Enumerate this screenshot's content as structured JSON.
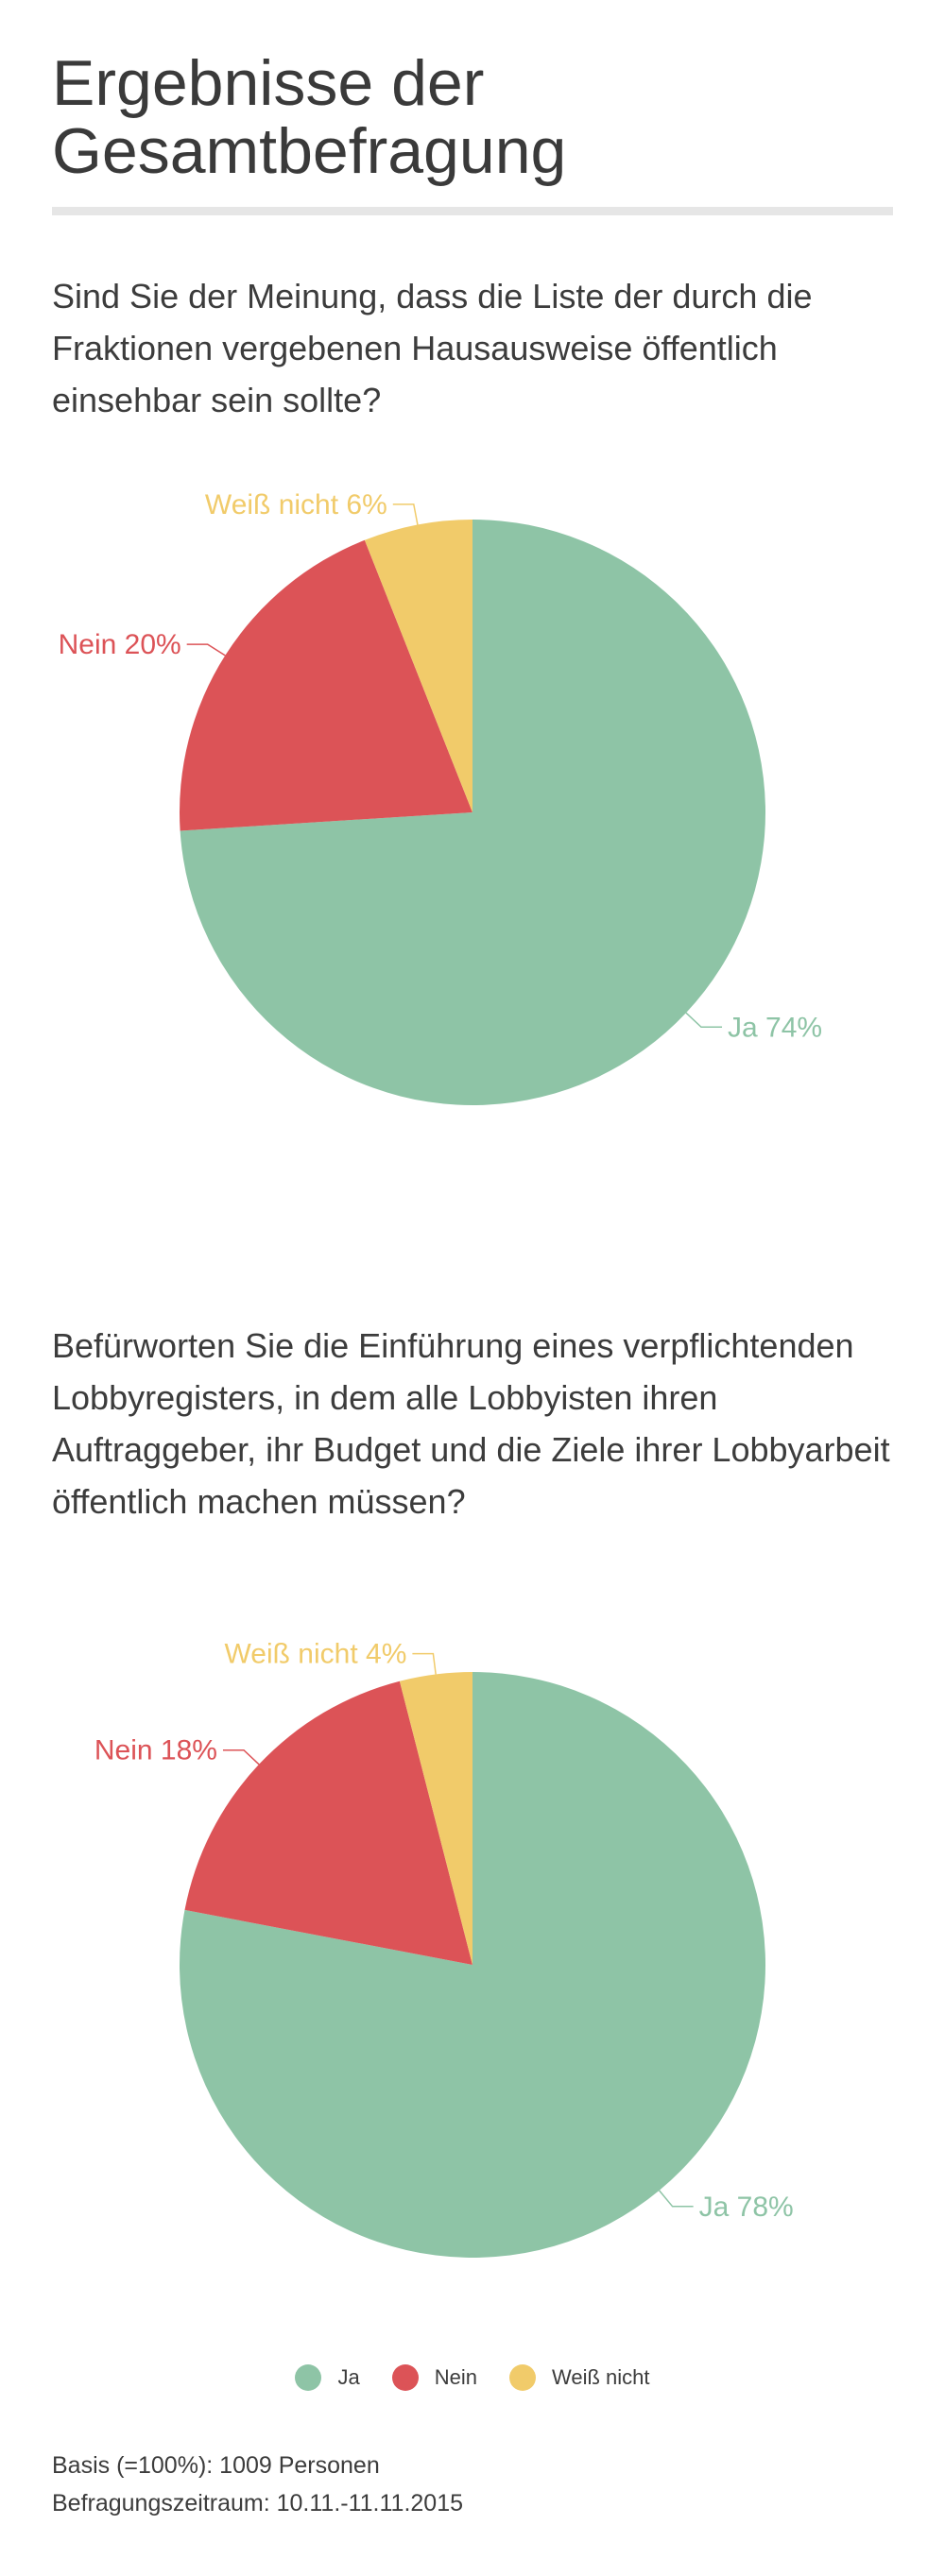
{
  "title": "Ergebnisse der Gesamtbefragung",
  "questions": [
    "Sind Sie der Meinung, dass die Liste der durch die Fraktionen vergebenen Hausausweise öffentlich einsehbar sein sollte?",
    "Befürworten Sie die Einführung eines verpflichtenden Lobbyregisters, in dem alle Lobbyisten ihren Auftraggeber, ihr Budget und die Ziele ihrer Lobbyarbeit öffentlich machen müssen?"
  ],
  "colors": {
    "ja": "#8ec4a6",
    "nein": "#dc5357",
    "weiss_nicht": "#f1cb6a",
    "text": "#3c3c3c",
    "rule": "#e6e6e6"
  },
  "chart_data": [
    {
      "type": "pie",
      "categories": [
        "Ja",
        "Nein",
        "Weiß nicht"
      ],
      "values": [
        74,
        20,
        6
      ],
      "labels": [
        "Ja 74%",
        "Nein 20%",
        "Weiß nicht 6%"
      ],
      "unit": "%"
    },
    {
      "type": "pie",
      "categories": [
        "Ja",
        "Nein",
        "Weiß nicht"
      ],
      "values": [
        78,
        18,
        4
      ],
      "labels": [
        "Ja 78%",
        "Nein 18%",
        "Weiß nicht 4%"
      ],
      "unit": "%"
    }
  ],
  "legend": [
    {
      "label": "Ja",
      "color": "#8ec4a6"
    },
    {
      "label": "Nein",
      "color": "#dc5357"
    },
    {
      "label": "Weiß nicht",
      "color": "#f1cb6a"
    }
  ],
  "footnotes": {
    "basis": "Basis (=100%): 1009 Personen",
    "period": "Befragungszeitraum: 10.11.-11.11.2015"
  }
}
